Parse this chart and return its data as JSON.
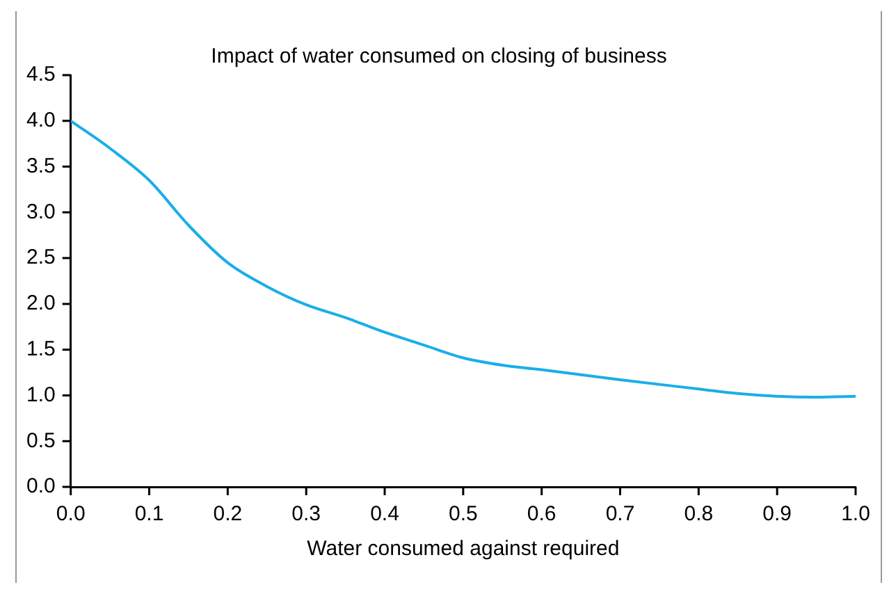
{
  "chart_data": {
    "type": "line",
    "title": "Impact of water consumed on closing of business",
    "xlabel": "Water consumed against required",
    "x": [
      0,
      0.05,
      0.1,
      0.15,
      0.2,
      0.25,
      0.3,
      0.35,
      0.4,
      0.45,
      0.5,
      0.55,
      0.6,
      0.7,
      0.8,
      0.85,
      0.9,
      0.95,
      1.0
    ],
    "series": [
      {
        "color": "#1aaee8",
        "values": [
          4.0,
          3.7,
          3.35,
          2.86,
          2.45,
          2.19,
          1.99,
          1.85,
          1.69,
          1.55,
          1.41,
          1.33,
          1.28,
          1.17,
          1.07,
          1.02,
          0.99,
          0.98,
          0.99
        ]
      }
    ],
    "xlim": [
      0,
      1
    ],
    "ylim": [
      0,
      4.5
    ],
    "xticks": [
      {
        "value": 0,
        "label": "0.0"
      },
      0.1,
      0.2,
      0.3,
      0.4,
      0.5,
      0.6,
      0.7,
      0.8,
      0.9,
      {
        "value": 1,
        "label": "1.0"
      }
    ],
    "yticks": [
      {
        "value": 0,
        "label": "0.0"
      },
      0.5,
      {
        "value": 1,
        "label": "1.0"
      },
      1.5,
      {
        "value": 2,
        "label": "2.0"
      },
      2.5,
      {
        "value": 3,
        "label": "3.0"
      },
      3.5,
      {
        "value": 4,
        "label": "4.0"
      },
      4.5
    ],
    "grid": false,
    "legend": false,
    "marker": "none",
    "line_style": "solid"
  }
}
